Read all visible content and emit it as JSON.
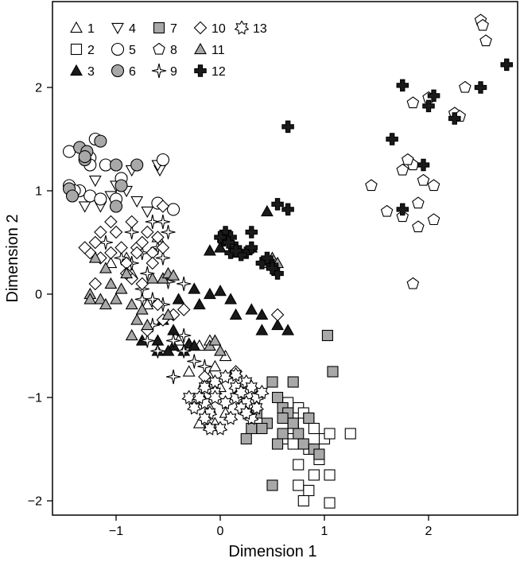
{
  "chart_data": {
    "type": "scatter",
    "title": "",
    "xlabel": "Dimension 1",
    "ylabel": "Dimension 2",
    "xlim": [
      -1.6,
      2.8
    ],
    "ylim": [
      -2.15,
      2.8
    ],
    "xticks": [
      -1,
      0,
      1,
      2
    ],
    "yticks": [
      -2,
      -1,
      0,
      1,
      2
    ],
    "xtick_labels": [
      "−1",
      "0",
      "1",
      "2"
    ],
    "ytick_labels": [
      "−2",
      "−1",
      "0",
      "1",
      "2"
    ],
    "grid": false,
    "legend_position": "top-left",
    "colors": {
      "black": "#1a1a1a",
      "gray": "#a8a8a8",
      "white": "#ffffff",
      "stroke": "#000000"
    },
    "series": [
      {
        "name": "1",
        "marker": "triangle",
        "fill": "white",
        "points": [
          [
            -1.05,
            0.3
          ],
          [
            -0.9,
            0.35
          ],
          [
            -0.6,
            0.55
          ],
          [
            -0.85,
            0.2
          ],
          [
            -0.55,
            0.15
          ],
          [
            -0.7,
            -0.1
          ],
          [
            -0.4,
            -0.45
          ],
          [
            -0.2,
            -0.5
          ],
          [
            -0.1,
            -0.45
          ],
          [
            0.05,
            -0.6
          ],
          [
            -0.05,
            -0.7
          ],
          [
            -0.3,
            -0.75
          ],
          [
            -0.15,
            -0.85
          ],
          [
            -0.1,
            -1.1
          ],
          [
            -0.2,
            -1.25
          ],
          [
            -0.1,
            -0.8
          ],
          [
            0.05,
            -1.15
          ],
          [
            -0.05,
            -1.25
          ],
          [
            0.0,
            -0.9
          ]
        ]
      },
      {
        "name": "2",
        "marker": "square",
        "fill": "white",
        "points": [
          [
            0.6,
            -1.05
          ],
          [
            0.75,
            -1.1
          ],
          [
            0.8,
            -1.15
          ],
          [
            0.7,
            -1.25
          ],
          [
            0.85,
            -1.2
          ],
          [
            0.9,
            -1.3
          ],
          [
            0.6,
            -1.4
          ],
          [
            0.7,
            -1.45
          ],
          [
            0.85,
            -1.5
          ],
          [
            1.0,
            -1.4
          ],
          [
            1.05,
            -1.35
          ],
          [
            1.25,
            -1.35
          ],
          [
            0.95,
            -1.6
          ],
          [
            0.75,
            -1.65
          ],
          [
            0.9,
            -1.75
          ],
          [
            1.05,
            -1.75
          ],
          [
            0.75,
            -1.85
          ],
          [
            0.85,
            -1.9
          ],
          [
            0.8,
            -2.0
          ],
          [
            1.05,
            -2.02
          ],
          [
            0.65,
            -1.05
          ],
          [
            0.7,
            -1.3
          ]
        ]
      },
      {
        "name": "3",
        "marker": "triangle",
        "fill": "black",
        "points": [
          [
            0.0,
            0.45
          ],
          [
            -0.1,
            0.42
          ],
          [
            0.15,
            0.4
          ],
          [
            0.3,
            0.45
          ],
          [
            0.45,
            0.8
          ],
          [
            0.0,
            0.03
          ],
          [
            -0.25,
            0.05
          ],
          [
            -0.1,
            0.0
          ],
          [
            0.1,
            -0.05
          ],
          [
            -0.4,
            -0.05
          ],
          [
            -0.2,
            -0.1
          ],
          [
            0.15,
            -0.2
          ],
          [
            0.3,
            -0.15
          ],
          [
            0.4,
            -0.35
          ],
          [
            0.55,
            -0.3
          ],
          [
            0.65,
            -0.35
          ],
          [
            0.4,
            -0.2
          ],
          [
            -0.55,
            -0.25
          ],
          [
            -0.45,
            -0.35
          ],
          [
            -0.6,
            -0.45
          ],
          [
            -0.45,
            -0.5
          ],
          [
            -0.5,
            -0.55
          ],
          [
            -0.35,
            -0.55
          ],
          [
            -0.3,
            -0.48
          ],
          [
            -0.6,
            -0.55
          ],
          [
            -0.75,
            -0.45
          ],
          [
            -0.25,
            -0.5
          ]
        ]
      },
      {
        "name": "4",
        "marker": "triangle-down",
        "fill": "white",
        "points": [
          [
            -1.2,
            1.1
          ],
          [
            -1.0,
            1.05
          ],
          [
            -0.95,
            1.1
          ],
          [
            -0.85,
            1.2
          ],
          [
            -0.58,
            1.2
          ],
          [
            -0.6,
            1.25
          ],
          [
            -0.9,
            1.0
          ],
          [
            -1.05,
            0.95
          ],
          [
            -0.8,
            0.9
          ],
          [
            -0.7,
            0.8
          ],
          [
            -1.15,
            0.85
          ],
          [
            -1.3,
            0.85
          ]
        ]
      },
      {
        "name": "5",
        "marker": "circle",
        "fill": "white",
        "points": [
          [
            -1.45,
            1.38
          ],
          [
            -1.2,
            1.5
          ],
          [
            -1.25,
            1.32
          ],
          [
            -1.1,
            1.25
          ],
          [
            -1.25,
            1.25
          ],
          [
            -1.35,
            1.0
          ],
          [
            -1.25,
            0.95
          ],
          [
            -1.15,
            0.92
          ],
          [
            -1.0,
            0.92
          ],
          [
            -0.55,
            1.3
          ],
          [
            -0.95,
            1.12
          ],
          [
            -1.45,
            1.05
          ],
          [
            -1.4,
            1.0
          ],
          [
            -0.45,
            0.82
          ],
          [
            -0.6,
            0.88
          ]
        ]
      },
      {
        "name": "6",
        "marker": "circle",
        "fill": "gray",
        "points": [
          [
            -1.35,
            1.42
          ],
          [
            -1.28,
            1.38
          ],
          [
            -1.15,
            1.48
          ],
          [
            -1.3,
            1.3
          ],
          [
            -0.8,
            1.25
          ],
          [
            -1.0,
            1.25
          ],
          [
            -1.45,
            1.02
          ],
          [
            -1.0,
            0.85
          ],
          [
            -0.95,
            1.05
          ],
          [
            -1.3,
            1.33
          ],
          [
            -1.42,
            0.95
          ]
        ]
      },
      {
        "name": "7",
        "marker": "square",
        "fill": "gray",
        "points": [
          [
            1.03,
            -0.4
          ],
          [
            1.08,
            -0.75
          ],
          [
            0.5,
            -0.85
          ],
          [
            0.55,
            -1.0
          ],
          [
            0.6,
            -1.1
          ],
          [
            0.65,
            -1.15
          ],
          [
            0.35,
            -1.15
          ],
          [
            0.45,
            -1.25
          ],
          [
            0.3,
            -1.3
          ],
          [
            0.25,
            -1.4
          ],
          [
            0.6,
            -1.35
          ],
          [
            0.75,
            -1.35
          ],
          [
            0.8,
            -1.45
          ],
          [
            0.9,
            -1.5
          ],
          [
            0.95,
            -1.55
          ],
          [
            0.55,
            -1.45
          ],
          [
            0.5,
            -1.85
          ],
          [
            0.6,
            -1.2
          ],
          [
            0.7,
            -1.25
          ],
          [
            0.4,
            -1.3
          ],
          [
            0.85,
            -1.2
          ],
          [
            0.7,
            -0.85
          ]
        ]
      },
      {
        "name": "8",
        "marker": "pentagon",
        "fill": "white",
        "points": [
          [
            2.5,
            2.65
          ],
          [
            2.55,
            2.45
          ],
          [
            2.52,
            2.6
          ],
          [
            2.35,
            2.0
          ],
          [
            2.25,
            1.75
          ],
          [
            2.3,
            1.72
          ],
          [
            1.85,
            1.85
          ],
          [
            2.0,
            1.9
          ],
          [
            1.75,
            1.2
          ],
          [
            1.85,
            1.25
          ],
          [
            1.95,
            1.1
          ],
          [
            1.9,
            0.88
          ],
          [
            2.05,
            1.05
          ],
          [
            1.45,
            1.05
          ],
          [
            1.6,
            0.8
          ],
          [
            1.75,
            0.75
          ],
          [
            1.9,
            0.65
          ],
          [
            2.05,
            0.72
          ],
          [
            1.85,
            0.1
          ],
          [
            1.8,
            1.3
          ]
        ]
      },
      {
        "name": "9",
        "marker": "star4",
        "fill": "white",
        "points": [
          [
            -1.1,
            0.5
          ],
          [
            -0.85,
            0.6
          ],
          [
            -0.75,
            0.4
          ],
          [
            -0.6,
            0.45
          ],
          [
            -0.85,
            0.3
          ],
          [
            -0.7,
            0.2
          ],
          [
            -0.75,
            -0.05
          ],
          [
            -0.65,
            -0.05
          ],
          [
            -0.55,
            -0.1
          ],
          [
            -0.65,
            -0.3
          ],
          [
            -0.7,
            -0.45
          ],
          [
            -0.45,
            -0.45
          ],
          [
            -0.35,
            -0.55
          ],
          [
            -0.45,
            -0.8
          ],
          [
            -0.35,
            0.1
          ],
          [
            -0.5,
            0.12
          ],
          [
            -0.6,
            -0.55
          ],
          [
            -0.75,
            0.05
          ],
          [
            -0.95,
            0.35
          ],
          [
            -0.55,
            0.35
          ],
          [
            -0.35,
            -0.4
          ],
          [
            -0.5,
            0.6
          ],
          [
            -0.65,
            0.7
          ],
          [
            -0.55,
            0.7
          ],
          [
            -0.25,
            -0.65
          ],
          [
            -0.15,
            -0.7
          ]
        ]
      },
      {
        "name": "10",
        "marker": "diamond",
        "fill": "white",
        "points": [
          [
            -0.55,
            0.85
          ],
          [
            -0.6,
            0.55
          ],
          [
            -0.7,
            0.6
          ],
          [
            -0.85,
            0.7
          ],
          [
            -1.0,
            0.6
          ],
          [
            -1.05,
            0.7
          ],
          [
            -1.15,
            0.6
          ],
          [
            -1.2,
            0.5
          ],
          [
            -1.25,
            0.4
          ],
          [
            -1.15,
            0.35
          ],
          [
            -1.05,
            0.4
          ],
          [
            -0.95,
            0.45
          ],
          [
            -0.8,
            0.45
          ],
          [
            -0.75,
            0.5
          ],
          [
            -1.3,
            0.45
          ],
          [
            -1.2,
            0.1
          ],
          [
            -0.85,
            0.15
          ],
          [
            -0.75,
            0.1
          ],
          [
            -0.6,
            -0.1
          ],
          [
            -0.7,
            -0.35
          ],
          [
            -0.55,
            -0.25
          ],
          [
            -0.45,
            -0.2
          ],
          [
            -0.35,
            -0.15
          ],
          [
            0.55,
            -0.2
          ],
          [
            0.15,
            -0.75
          ],
          [
            -0.15,
            -0.8
          ],
          [
            -0.65,
            0.4
          ],
          [
            -0.9,
            0.3
          ],
          [
            -0.8,
            0.4
          ],
          [
            -0.9,
            0.2
          ],
          [
            -0.65,
            0.3
          ],
          [
            -0.55,
            0.45
          ]
        ]
      },
      {
        "name": "11",
        "marker": "triangle",
        "fill": "gray",
        "points": [
          [
            -1.2,
            0.35
          ],
          [
            -1.1,
            0.25
          ],
          [
            -1.15,
            -0.05
          ],
          [
            -1.0,
            -0.05
          ],
          [
            -0.95,
            0.05
          ],
          [
            -0.85,
            -0.1
          ],
          [
            -0.75,
            -0.15
          ],
          [
            -0.8,
            -0.25
          ],
          [
            -0.9,
            0.2
          ],
          [
            -1.05,
            0.1
          ],
          [
            -1.1,
            -0.1
          ],
          [
            -1.25,
            0.0
          ],
          [
            -1.25,
            -0.05
          ],
          [
            -0.55,
            0.15
          ],
          [
            -0.5,
            0.2
          ],
          [
            -0.65,
            0.15
          ],
          [
            -0.45,
            0.18
          ],
          [
            -0.85,
            -0.4
          ],
          [
            -0.7,
            -0.3
          ],
          [
            -0.5,
            -0.2
          ],
          [
            0.45,
            0.3
          ],
          [
            0.5,
            0.35
          ],
          [
            0.55,
            0.3
          ],
          [
            -0.1,
            -0.5
          ],
          [
            0.0,
            -0.55
          ],
          [
            -0.05,
            -0.45
          ]
        ]
      },
      {
        "name": "12",
        "marker": "cross",
        "fill": "black",
        "points": [
          [
            2.75,
            2.22
          ],
          [
            2.5,
            2.0
          ],
          [
            2.25,
            1.7
          ],
          [
            1.75,
            2.02
          ],
          [
            2.05,
            1.92
          ],
          [
            2.0,
            1.82
          ],
          [
            0.65,
            1.62
          ],
          [
            1.65,
            1.5
          ],
          [
            1.95,
            1.25
          ],
          [
            1.75,
            0.82
          ],
          [
            0.55,
            0.87
          ],
          [
            0.65,
            0.82
          ],
          [
            0.05,
            0.6
          ],
          [
            0.1,
            0.55
          ],
          [
            0.1,
            0.4
          ],
          [
            0.15,
            0.45
          ],
          [
            0.3,
            0.6
          ],
          [
            0.25,
            0.4
          ],
          [
            0.3,
            0.45
          ],
          [
            0.4,
            0.3
          ],
          [
            0.5,
            0.28
          ],
          [
            0.45,
            0.35
          ],
          [
            0.55,
            0.2
          ],
          [
            0.5,
            0.25
          ],
          [
            0.03,
            0.52
          ],
          [
            0.2,
            0.38
          ],
          [
            0.15,
            0.42
          ],
          [
            0.0,
            0.55
          ],
          [
            0.08,
            0.5
          ]
        ]
      },
      {
        "name": "13",
        "marker": "star7",
        "fill": "white",
        "points": [
          [
            -0.05,
            -0.85
          ],
          [
            0.05,
            -0.8
          ],
          [
            0.15,
            -0.9
          ],
          [
            0.25,
            -0.85
          ],
          [
            0.3,
            -0.9
          ],
          [
            0.35,
            -1.0
          ],
          [
            0.25,
            -1.05
          ],
          [
            0.15,
            -1.0
          ],
          [
            0.05,
            -1.05
          ],
          [
            -0.05,
            -0.95
          ],
          [
            -0.15,
            -1.05
          ],
          [
            -0.25,
            -1.1
          ],
          [
            -0.1,
            -1.15
          ],
          [
            0.2,
            -1.1
          ],
          [
            0.3,
            -1.2
          ],
          [
            0.1,
            -1.2
          ],
          [
            0.0,
            -1.3
          ],
          [
            -0.1,
            -1.3
          ],
          [
            -0.15,
            -1.2
          ],
          [
            0.35,
            -1.1
          ],
          [
            0.2,
            -0.95
          ],
          [
            0.4,
            -0.95
          ],
          [
            0.25,
            -1.15
          ],
          [
            -0.3,
            -1.0
          ],
          [
            0.15,
            -0.78
          ],
          [
            -0.05,
            -1.0
          ],
          [
            -0.2,
            -1.0
          ],
          [
            -0.15,
            -0.9
          ]
        ]
      }
    ]
  }
}
